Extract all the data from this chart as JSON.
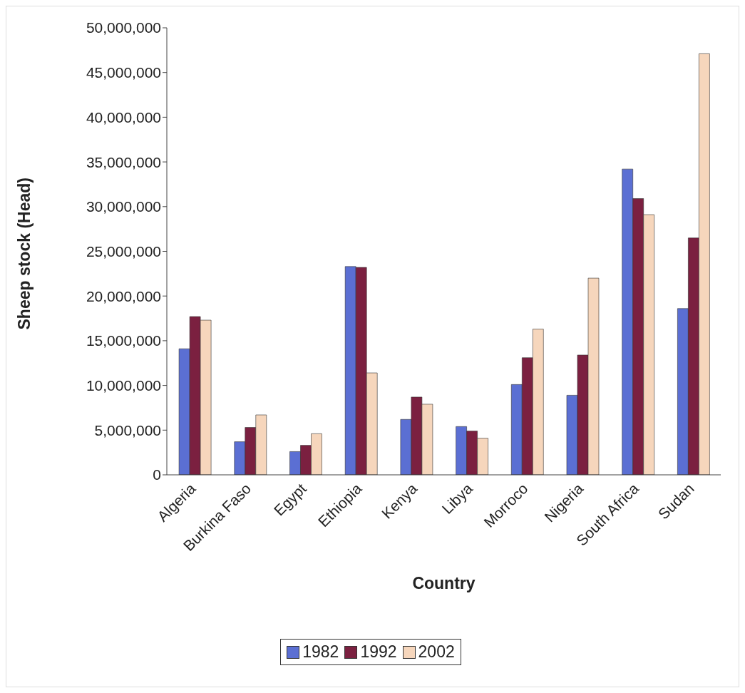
{
  "chart_data": {
    "type": "bar",
    "xlabel": "Country",
    "ylabel": "Sheep stock (Head)",
    "categories": [
      "Algeria",
      "Burkina Faso",
      "Egypt",
      "Ethiopia",
      "Kenya",
      "Libya",
      "Morroco",
      "Nigeria",
      "South Africa",
      "Sudan"
    ],
    "series": [
      {
        "name": "1982",
        "color": "#5b6fd3",
        "values": [
          14100000,
          3700000,
          2600000,
          23300000,
          6200000,
          5400000,
          10100000,
          8900000,
          34200000,
          18600000
        ]
      },
      {
        "name": "1992",
        "color": "#7b2040",
        "values": [
          17700000,
          5300000,
          3300000,
          23200000,
          8700000,
          4900000,
          13100000,
          13400000,
          30900000,
          26500000
        ]
      },
      {
        "name": "2002",
        "color": "#f6d6bc",
        "values": [
          17300000,
          6700000,
          4600000,
          11400000,
          7900000,
          4100000,
          16300000,
          22000000,
          29100000,
          47100000
        ]
      }
    ],
    "ylim": [
      0,
      50000000
    ],
    "yticks": [
      0,
      {
        "value": 5000000,
        "label": "5,000,000"
      },
      {
        "value": 10000000,
        "label": "10,000,000"
      },
      {
        "value": 15000000,
        "label": "15,000,000"
      },
      {
        "value": 20000000,
        "label": "20,000,000"
      },
      {
        "value": 25000000,
        "label": "25,000,000"
      },
      {
        "value": 30000000,
        "label": "30,000,000"
      },
      {
        "value": 35000000,
        "label": "35,000,000"
      },
      {
        "value": 40000000,
        "label": "40,000,000"
      },
      {
        "value": 45000000,
        "label": "45,000,000"
      },
      {
        "value": 50000000,
        "label": "50,000,000"
      }
    ],
    "grid": false,
    "legend": "bottom"
  }
}
